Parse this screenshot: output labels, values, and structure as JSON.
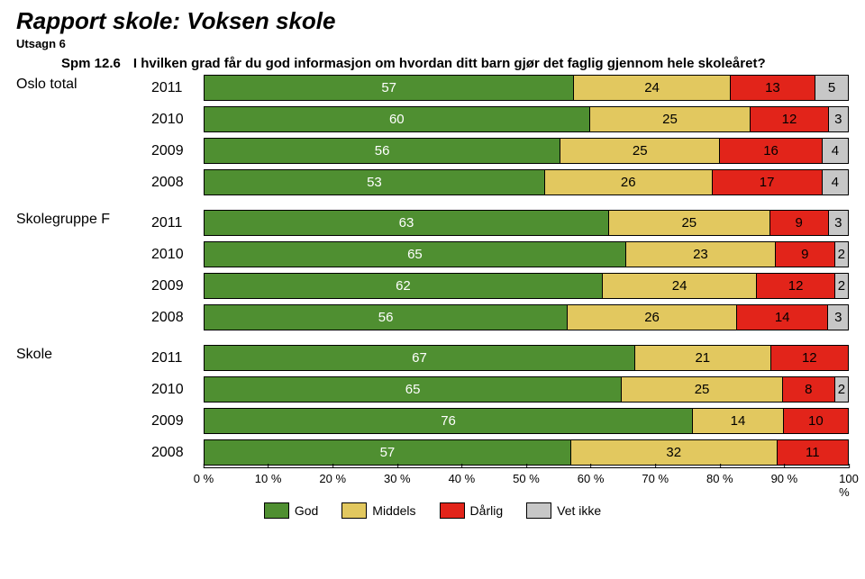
{
  "header": {
    "title": "Rapport skole:  Voksen skole",
    "subtitle": "Utsagn 6",
    "question_number": "Spm 12.6",
    "question_text": "I hvilken grad får du god informasjon om hvordan ditt barn gjør det faglig gjennom hele skoleåret?"
  },
  "colors": {
    "good": "#4f8f31",
    "mid": "#e2c85f",
    "bad": "#e2241a",
    "dk": "#c7c7c7",
    "text_on_good": "#ffffff"
  },
  "legend": {
    "good": "God",
    "mid": "Middels",
    "bad": "Dårlig",
    "dk": "Vet ikke"
  },
  "x_axis": {
    "ticks": [
      "0 %",
      "10 %",
      "20 %",
      "30 %",
      "40 %",
      "50 %",
      "60 %",
      "70 %",
      "80 %",
      "90 %",
      "100 %"
    ]
  },
  "groups": [
    {
      "label": "Oslo total",
      "rows": [
        {
          "year": "2011",
          "good": 57,
          "mid": 24,
          "bad": 13,
          "dk": 5
        },
        {
          "year": "2010",
          "good": 60,
          "mid": 25,
          "bad": 12,
          "dk": 3
        },
        {
          "year": "2009",
          "good": 56,
          "mid": 25,
          "bad": 16,
          "dk": 4
        },
        {
          "year": "2008",
          "good": 53,
          "mid": 26,
          "bad": 17,
          "dk": 4
        }
      ]
    },
    {
      "label": "Skolegruppe F",
      "rows": [
        {
          "year": "2011",
          "good": 63,
          "mid": 25,
          "bad": 9,
          "dk": 3
        },
        {
          "year": "2010",
          "good": 65,
          "mid": 23,
          "bad": 9,
          "dk": 2
        },
        {
          "year": "2009",
          "good": 62,
          "mid": 24,
          "bad": 12,
          "dk": 2
        },
        {
          "year": "2008",
          "good": 56,
          "mid": 26,
          "bad": 14,
          "dk": 3
        }
      ]
    },
    {
      "label": "Skole",
      "rows": [
        {
          "year": "2011",
          "good": 67,
          "mid": 21,
          "bad": 12,
          "dk": 0
        },
        {
          "year": "2010",
          "good": 65,
          "mid": 25,
          "bad": 8,
          "dk": 2
        },
        {
          "year": "2009",
          "good": 76,
          "mid": 14,
          "bad": 10,
          "dk": 0
        },
        {
          "year": "2008",
          "good": 57,
          "mid": 32,
          "bad": 11,
          "dk": 0
        }
      ]
    }
  ]
}
